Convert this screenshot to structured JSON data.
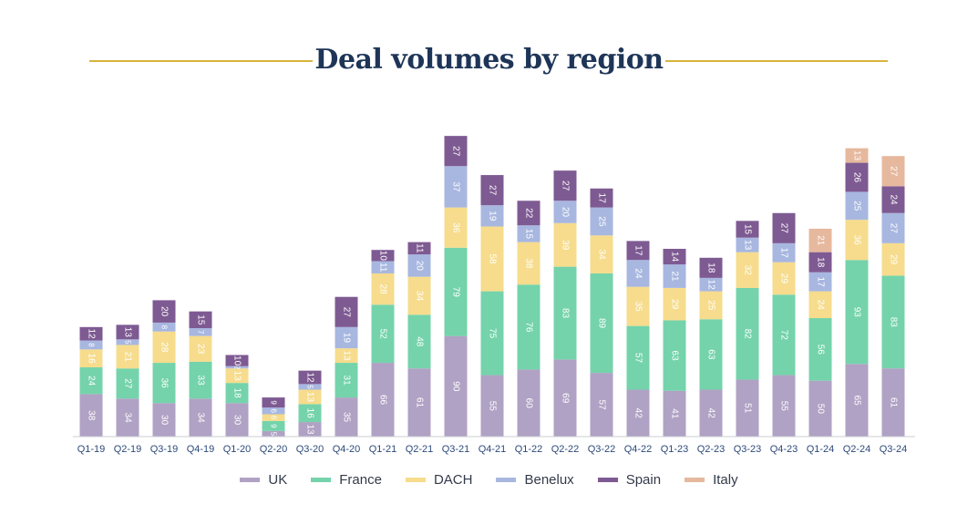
{
  "chart_data": {
    "type": "bar",
    "stacked": true,
    "title": "Deal volumes by region",
    "xlabel": "",
    "ylabel": "",
    "categories": [
      "Q1-19",
      "Q2-19",
      "Q3-19",
      "Q4-19",
      "Q1-20",
      "Q2-20",
      "Q3-20",
      "Q4-20",
      "Q1-21",
      "Q2-21",
      "Q3-21",
      "Q4-21",
      "Q1-22",
      "Q2-22",
      "Q3-22",
      "Q4-22",
      "Q1-23",
      "Q2-23",
      "Q3-23",
      "Q4-23",
      "Q1-24",
      "Q2-24",
      "Q3-24"
    ],
    "series": [
      {
        "name": "UK",
        "color": "#b0a2c4",
        "values": [
          38,
          34,
          30,
          34,
          30,
          5,
          13,
          35,
          66,
          61,
          90,
          55,
          60,
          69,
          57,
          42,
          41,
          42,
          51,
          55,
          50,
          65,
          61
        ]
      },
      {
        "name": "France",
        "color": "#74d3ab",
        "values": [
          24,
          27,
          36,
          33,
          18,
          9,
          16,
          31,
          52,
          48,
          79,
          75,
          76,
          83,
          89,
          57,
          63,
          63,
          82,
          72,
          56,
          93,
          83
        ]
      },
      {
        "name": "DACH",
        "color": "#f6dc8c",
        "values": [
          16,
          21,
          28,
          23,
          13,
          6,
          13,
          13,
          28,
          34,
          36,
          58,
          38,
          39,
          34,
          35,
          29,
          25,
          32,
          29,
          24,
          36,
          29
        ]
      },
      {
        "name": "Benelux",
        "color": "#a8b7e0",
        "values": [
          8,
          5,
          8,
          7,
          2,
          6,
          5,
          19,
          11,
          20,
          37,
          19,
          15,
          20,
          25,
          24,
          21,
          12,
          13,
          17,
          17,
          25,
          27
        ]
      },
      {
        "name": "Spain",
        "color": "#7e5a92",
        "values": [
          12,
          13,
          20,
          15,
          10,
          9,
          12,
          27,
          10,
          11,
          27,
          27,
          22,
          27,
          17,
          17,
          14,
          18,
          15,
          27,
          18,
          26,
          24
        ]
      },
      {
        "name": "Italy",
        "color": "#e6b89d",
        "values": [
          0,
          0,
          0,
          0,
          0,
          0,
          0,
          0,
          0,
          0,
          0,
          0,
          0,
          0,
          0,
          0,
          0,
          0,
          0,
          0,
          21,
          13,
          27
        ]
      }
    ],
    "ylim": [
      0,
      305
    ],
    "grid": false,
    "legend_position": "bottom",
    "title_rule_color": "#d8b43e",
    "title_color": "#1e3558"
  }
}
